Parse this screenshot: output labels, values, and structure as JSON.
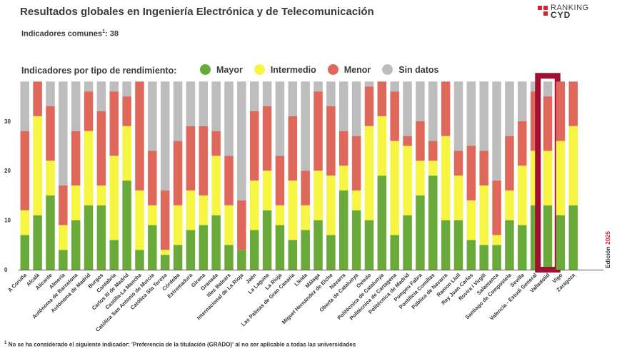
{
  "header": {
    "title": "Resultados globales en Ingeniería Electrónica y de Telecomunicación",
    "indicators_label": "Indicadores comunes",
    "indicators_sup": "1",
    "indicators_value": ": 38"
  },
  "brand": {
    "line1": "RANKING",
    "line2": "CYD"
  },
  "legend": {
    "title": "Indicadores por tipo de rendimiento:",
    "items": [
      {
        "label": "Mayor",
        "color": "#6aaa3a"
      },
      {
        "label": "Intermedio",
        "color": "#f5f542"
      },
      {
        "label": "Menor",
        "color": "#e0685a"
      },
      {
        "label": "Sin datos",
        "color": "#bdbdbd"
      }
    ]
  },
  "edition": {
    "label": "Edición",
    "year": "2025"
  },
  "footnote": {
    "sup": "1",
    "text": " No se ha considerado el siguiente indicador: 'Preferencia de la titulación (GRADO)' al no ser aplicable a todas las universidades"
  },
  "chart_data": {
    "type": "bar",
    "stacked": true,
    "title": "Indicadores por tipo de rendimiento",
    "ylim": [
      0,
      38
    ],
    "yticks": [
      0,
      10,
      20,
      30
    ],
    "highlight": "Valladolid",
    "highlight_color": "#a01030",
    "categories": [
      "A Coruña",
      "Alcalá",
      "Alicante",
      "Almería",
      "Autónoma de Barcelona",
      "Autónoma de Madrid",
      "Burgos",
      "Cantabria",
      "Carlos III de Madrid",
      "Castilla-La Mancha",
      "Católica San Antonio de Murcia",
      "Católica Sta Teresa",
      "Córdoba",
      "Extremadura",
      "Girona",
      "Granada",
      "Illes Balears",
      "Internacional de La Rioja",
      "Jaén",
      "La Laguna",
      "La Rioja",
      "Las Palmas de Gran Canaria",
      "Lleida",
      "Málaga",
      "Miguel Hernández de Elche",
      "Navarra",
      "Oberta de Catalunya",
      "Oviedo",
      "Politècnica de Catalunya",
      "Politécnica de Cartagena",
      "Politécnica de Madrid",
      "Pompeu Fabra",
      "Pontificia Comillas",
      "Pública de Navarra",
      "Ramon Llull",
      "Rey Juan Carlos",
      "Rovira i Virgili",
      "Salamanca",
      "Santiago de Compostela",
      "Sevilla",
      "Valencia - Estudi General",
      "Valladolid",
      "Vigo",
      "Zaragoza"
    ],
    "series": [
      {
        "name": "Mayor",
        "color": "#6aaa3a",
        "values": [
          7,
          11,
          15,
          4,
          10,
          13,
          13,
          6,
          18,
          4,
          9,
          3,
          5,
          8,
          9,
          11,
          5,
          4,
          8,
          12,
          9,
          6,
          8,
          10,
          7,
          16,
          12,
          10,
          19,
          7,
          11,
          15,
          19,
          10,
          10,
          6,
          5,
          5,
          10,
          9,
          13,
          13,
          11,
          13
        ]
      },
      {
        "name": "Intermedio",
        "color": "#f5f542",
        "values": [
          5,
          20,
          7,
          5,
          7,
          15,
          4,
          17,
          11,
          12,
          4,
          1,
          8,
          8,
          6,
          12,
          8,
          0,
          10,
          8,
          4,
          12,
          5,
          10,
          12,
          5,
          4,
          19,
          12,
          19,
          14,
          7,
          3,
          17,
          9,
          8,
          12,
          2,
          6,
          12,
          11,
          11,
          15,
          16
        ]
      },
      {
        "name": "Menor",
        "color": "#e0685a",
        "values": [
          16,
          7,
          11,
          8,
          11,
          8,
          15,
          13,
          6,
          22,
          11,
          12,
          13,
          13,
          14,
          5,
          10,
          10,
          14,
          13,
          10,
          13,
          7,
          16,
          14,
          7,
          11,
          8,
          7,
          10,
          2,
          8,
          4,
          11,
          5,
          11,
          7,
          11,
          11,
          9,
          12,
          11,
          12,
          9
        ]
      },
      {
        "name": "Sin datos",
        "color": "#bdbdbd",
        "values": [
          10,
          0,
          5,
          21,
          10,
          2,
          6,
          2,
          3,
          0,
          14,
          22,
          12,
          9,
          9,
          10,
          15,
          24,
          6,
          5,
          15,
          7,
          18,
          2,
          5,
          10,
          11,
          1,
          0,
          2,
          11,
          8,
          12,
          0,
          14,
          13,
          14,
          20,
          11,
          8,
          2,
          3,
          0,
          0
        ]
      }
    ]
  }
}
